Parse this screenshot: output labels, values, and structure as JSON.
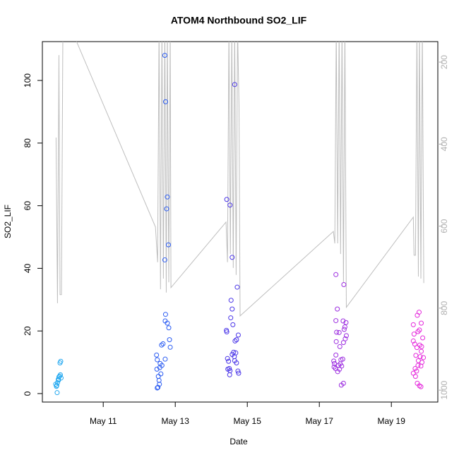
{
  "chart_data": {
    "type": "scatter",
    "title": "ATOM4 Northbound SO2_LIF",
    "x_label": "Date",
    "y_label": "SO2_LIF",
    "xlim": [
      9.31,
      20.29
    ],
    "ylim": [
      -2.7,
      112.4
    ],
    "y2lim": [
      1029,
      150
    ],
    "xticks": [
      {
        "value": 11,
        "label": "May 11"
      },
      {
        "value": 13,
        "label": "May 13"
      },
      {
        "value": 15,
        "label": "May 15"
      },
      {
        "value": 17,
        "label": "May 17"
      },
      {
        "value": 19,
        "label": "May 19"
      }
    ],
    "yticks": [
      0,
      20,
      40,
      60,
      80,
      100
    ],
    "y2ticks": [
      200,
      400,
      600,
      800,
      1000
    ],
    "series": [
      {
        "color": "#22a8f0",
        "x": [
          9.7,
          9.72,
          9.68,
          9.73,
          9.75,
          9.77,
          9.79,
          9.8,
          9.82,
          9.71,
          9.76,
          9.83,
          9.81
        ],
        "values": [
          2.3,
          0.3,
          3.0,
          3.5,
          4.5,
          5.3,
          5.6,
          9.8,
          10.3,
          2.6,
          4.3,
          5.0,
          6.0
        ]
      },
      {
        "color": "#2b5cf2",
        "x": [
          12.5,
          12.52,
          12.55,
          12.53,
          12.6,
          12.49,
          12.57,
          12.63,
          12.58,
          12.5,
          12.72,
          12.48,
          12.62,
          12.66,
          12.84,
          12.82,
          12.72,
          12.73,
          12.71,
          12.81,
          12.76,
          12.78,
          12.73,
          12.71,
          12.86,
          12.78,
          12.56
        ],
        "values": [
          1.8,
          2.0,
          4.2,
          5.5,
          6.3,
          7.8,
          8.3,
          9.0,
          9.6,
          10.8,
          11.0,
          12.3,
          15.5,
          15.9,
          17.2,
          21.0,
          23.2,
          25.3,
          42.7,
          47.5,
          59.0,
          62.8,
          93.2,
          108.0,
          14.8,
          22.5,
          3.0
        ]
      },
      {
        "color": "#4a35e8",
        "x": [
          14.43,
          14.52,
          14.58,
          14.65,
          14.55,
          14.58,
          14.54,
          14.6,
          14.42,
          14.43,
          14.75,
          14.7,
          14.66,
          14.72,
          14.62,
          14.58,
          14.68,
          14.45,
          14.48,
          14.65,
          14.7,
          14.5,
          14.52,
          14.46,
          14.74,
          14.76,
          14.51,
          14.64
        ],
        "values": [
          62.0,
          60.2,
          43.5,
          98.7,
          29.8,
          27.0,
          24.2,
          22.0,
          20.2,
          19.7,
          18.7,
          17.2,
          16.8,
          34.0,
          13.2,
          12.5,
          13.0,
          11.2,
          10.3,
          10.5,
          9.8,
          8.0,
          7.3,
          7.8,
          7.2,
          6.5,
          6.0,
          11.8
        ]
      },
      {
        "color": "#9c2de0",
        "x": [
          17.46,
          17.68,
          17.5,
          17.46,
          17.66,
          17.74,
          17.71,
          17.69,
          17.55,
          17.48,
          17.75,
          17.72,
          17.47,
          17.67,
          17.57,
          17.46,
          17.4,
          17.42,
          17.53,
          17.58,
          17.62,
          17.45,
          17.56,
          17.51,
          17.6,
          17.67,
          17.61,
          17.65,
          17.41
        ],
        "values": [
          38.0,
          34.8,
          27.0,
          23.3,
          23.2,
          22.7,
          21.3,
          20.5,
          19.5,
          19.6,
          18.5,
          17.5,
          16.6,
          16.3,
          15.0,
          12.3,
          10.4,
          9.6,
          9.0,
          9.5,
          8.8,
          8.0,
          7.8,
          7.0,
          10.8,
          3.3,
          2.7,
          11.0,
          8.5
        ]
      },
      {
        "color": "#e52bdc",
        "x": [
          19.77,
          19.72,
          19.83,
          19.61,
          19.78,
          19.74,
          19.63,
          19.87,
          19.61,
          19.65,
          19.79,
          19.84,
          19.71,
          19.83,
          19.68,
          19.8,
          19.89,
          19.75,
          19.85,
          19.74,
          19.66,
          19.82,
          19.61,
          19.7,
          19.72,
          19.78,
          19.82,
          19.67
        ],
        "values": [
          26.0,
          25.0,
          22.5,
          22.0,
          20.3,
          19.8,
          19.0,
          17.8,
          16.8,
          15.8,
          15.5,
          15.0,
          14.7,
          13.5,
          12.2,
          11.8,
          11.5,
          10.5,
          10.0,
          9.0,
          8.0,
          8.8,
          6.5,
          7.2,
          3.3,
          2.5,
          2.2,
          5.5
        ]
      },
      {
        "color": "#bebebe",
        "axis": "y2",
        "x": [
          9.69,
          9.73,
          9.77,
          9.8,
          9.84,
          9.88,
          10.1,
          12.45,
          12.51,
          12.55,
          12.59,
          12.63,
          12.67,
          12.71,
          12.75,
          12.78,
          12.82,
          12.86,
          12.88,
          14.41,
          14.45,
          14.49,
          14.53,
          14.57,
          14.61,
          14.65,
          14.69,
          14.73,
          14.77,
          14.8,
          17.39,
          17.43,
          17.47,
          17.51,
          17.55,
          17.59,
          17.63,
          17.67,
          17.71,
          17.75,
          19.61,
          19.63,
          19.67,
          19.71,
          19.75,
          19.78,
          19.82,
          19.86,
          19.9
        ],
        "values": [
          384,
          788,
          183,
          767,
          767,
          117,
          117,
          602,
          688,
          117,
          754,
          117,
          728,
          117,
          762,
          117,
          737,
          117,
          750,
          590,
          688,
          117,
          668,
          117,
          702,
          117,
          719,
          117,
          307,
          819,
          613,
          642,
          117,
          642,
          117,
          668,
          117,
          737,
          117,
          798,
          578,
          671,
          671,
          117,
          723,
          117,
          728,
          117,
          739
        ]
      }
    ]
  }
}
